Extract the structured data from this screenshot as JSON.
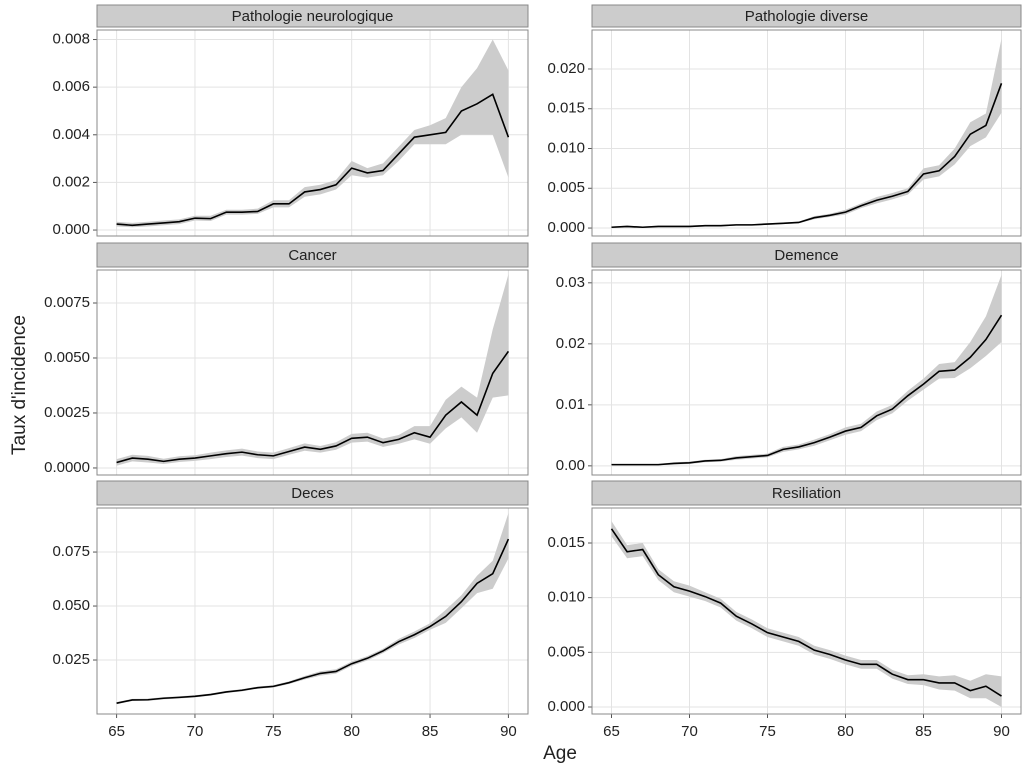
{
  "xlabel": "Age",
  "ylabel": "Taux d'incidence",
  "x": [
    65,
    66,
    67,
    68,
    69,
    70,
    71,
    72,
    73,
    74,
    75,
    76,
    77,
    78,
    79,
    80,
    81,
    82,
    83,
    84,
    85,
    86,
    87,
    88,
    89,
    90
  ],
  "xlim": [
    63.75,
    91.25
  ],
  "xticks": [
    65,
    70,
    75,
    80,
    85,
    90
  ],
  "chart_data": [
    {
      "type": "line",
      "title": "Pathologie neurologique",
      "color": "#000000",
      "band_color": "#cccccc",
      "grid": true,
      "ylim": [
        -0.00025,
        0.0084
      ],
      "yticks": [
        {
          "value": 0,
          "label": "0.000"
        },
        0.002,
        0.004,
        0.006,
        0.008
      ],
      "values": [
        0.00025,
        0.0002,
        0.00025,
        0.0003,
        0.00035,
        0.0005,
        0.00048,
        0.00075,
        0.00075,
        0.00078,
        0.0011,
        0.0011,
        0.0016,
        0.0017,
        0.0019,
        0.0026,
        0.0024,
        0.0025,
        0.0032,
        0.0039,
        0.004,
        0.0041,
        0.005,
        0.0053,
        0.0057,
        0.0039
      ],
      "lower": [
        0.00015,
        0.00012,
        0.00015,
        0.0002,
        0.00025,
        0.0004,
        0.00038,
        0.00065,
        0.00065,
        0.00068,
        0.00095,
        0.00095,
        0.0014,
        0.0015,
        0.0017,
        0.0023,
        0.0022,
        0.0023,
        0.0029,
        0.0036,
        0.0036,
        0.0036,
        0.004,
        0.004,
        0.004,
        0.0022
      ],
      "upper": [
        0.00035,
        0.0003,
        0.00035,
        0.0004,
        0.00045,
        0.0006,
        0.0006,
        0.00085,
        0.00085,
        0.0009,
        0.00125,
        0.00125,
        0.0018,
        0.0019,
        0.0021,
        0.0029,
        0.0026,
        0.0028,
        0.0035,
        0.0042,
        0.0044,
        0.0047,
        0.006,
        0.0068,
        0.008,
        0.0067
      ]
    },
    {
      "type": "line",
      "title": "Pathologie diverse",
      "color": "#000000",
      "band_color": "#cccccc",
      "grid": true,
      "ylim": [
        -0.001,
        0.0249
      ],
      "yticks": [
        {
          "value": 0,
          "label": "0.000"
        },
        0.005,
        {
          "value": 0.01,
          "label": "0.010"
        },
        0.015,
        {
          "value": 0.02,
          "label": "0.020"
        }
      ],
      "values": [
        0.0001,
        0.0002,
        0.0001,
        0.0002,
        0.0002,
        0.0002,
        0.0003,
        0.0003,
        0.0004,
        0.0004,
        0.0005,
        0.0006,
        0.0007,
        0.0013,
        0.0016,
        0.002,
        0.0028,
        0.0035,
        0.004,
        0.0046,
        0.0068,
        0.0072,
        0.009,
        0.0118,
        0.0129,
        0.0182
      ],
      "lower": [
        0.0,
        0.0001,
        0.0,
        0.0001,
        0.0001,
        0.0001,
        0.0002,
        0.0002,
        0.0003,
        0.0003,
        0.0004,
        0.0005,
        0.0006,
        0.0011,
        0.0014,
        0.0017,
        0.0025,
        0.0031,
        0.0036,
        0.0042,
        0.0061,
        0.0065,
        0.008,
        0.0103,
        0.0114,
        0.0145
      ],
      "upper": [
        0.0002,
        0.0003,
        0.0002,
        0.0003,
        0.0003,
        0.0003,
        0.0004,
        0.0004,
        0.0005,
        0.0005,
        0.0006,
        0.0007,
        0.0008,
        0.0015,
        0.0018,
        0.0023,
        0.0031,
        0.0039,
        0.0044,
        0.005,
        0.0075,
        0.0079,
        0.01,
        0.0133,
        0.0144,
        0.0238
      ]
    },
    {
      "type": "line",
      "title": "Cancer",
      "color": "#000000",
      "band_color": "#cccccc",
      "grid": true,
      "ylim": [
        -0.00032,
        0.009
      ],
      "yticks": [
        {
          "value": 0,
          "label": "0.0000"
        },
        0.0025,
        {
          "value": 0.005,
          "label": "0.0050"
        },
        0.0075
      ],
      "values": [
        0.00025,
        0.00045,
        0.0004,
        0.0003,
        0.0004,
        0.00045,
        0.00055,
        0.00065,
        0.00072,
        0.0006,
        0.00055,
        0.00075,
        0.00095,
        0.00085,
        0.001,
        0.00135,
        0.0014,
        0.00115,
        0.0013,
        0.0016,
        0.0014,
        0.0024,
        0.003,
        0.0024,
        0.0043,
        0.0053
      ],
      "lower": [
        0.0001,
        0.0003,
        0.00025,
        0.00018,
        0.00027,
        0.00032,
        0.0004,
        0.0005,
        0.00056,
        0.00045,
        0.0004,
        0.0006,
        0.00078,
        0.0007,
        0.00083,
        0.00115,
        0.0012,
        0.00096,
        0.0011,
        0.0013,
        0.0011,
        0.0018,
        0.0023,
        0.0016,
        0.0032,
        0.0033
      ],
      "upper": [
        0.0004,
        0.0006,
        0.00055,
        0.00042,
        0.00053,
        0.00058,
        0.0007,
        0.0008,
        0.00088,
        0.00075,
        0.0007,
        0.0009,
        0.00112,
        0.001,
        0.00117,
        0.00155,
        0.0016,
        0.00134,
        0.0015,
        0.0019,
        0.0019,
        0.0031,
        0.0037,
        0.0032,
        0.0063,
        0.0088
      ]
    },
    {
      "type": "line",
      "title": "Demence",
      "color": "#000000",
      "band_color": "#cccccc",
      "grid": true,
      "ylim": [
        -0.0015,
        0.0321
      ],
      "yticks": [
        {
          "value": 0,
          "label": "0.00"
        },
        0.01,
        0.02,
        0.03
      ],
      "values": [
        0.0002,
        0.0002,
        0.0002,
        0.0002,
        0.0004,
        0.0005,
        0.0008,
        0.0009,
        0.0013,
        0.0015,
        0.0017,
        0.0027,
        0.0031,
        0.0038,
        0.0047,
        0.0057,
        0.0063,
        0.0082,
        0.0093,
        0.0115,
        0.0134,
        0.0155,
        0.0157,
        0.0178,
        0.0207,
        0.0247
      ],
      "lower": [
        0.0001,
        0.0001,
        0.0001,
        0.0001,
        0.0002,
        0.0003,
        0.0006,
        0.0007,
        0.001,
        0.0012,
        0.0014,
        0.0023,
        0.0027,
        0.0033,
        0.0042,
        0.0051,
        0.0057,
        0.0075,
        0.0086,
        0.0107,
        0.0125,
        0.0143,
        0.0144,
        0.016,
        0.018,
        0.0203
      ],
      "upper": [
        0.0003,
        0.0003,
        0.0003,
        0.0003,
        0.0006,
        0.0007,
        0.001,
        0.0011,
        0.0016,
        0.0018,
        0.002,
        0.0031,
        0.0035,
        0.0043,
        0.0052,
        0.0063,
        0.0069,
        0.0089,
        0.01,
        0.0123,
        0.0143,
        0.0167,
        0.017,
        0.0203,
        0.0245,
        0.0313
      ]
    },
    {
      "type": "line",
      "title": "Deces",
      "color": "#000000",
      "band_color": "#cccccc",
      "grid": true,
      "ylim": [
        0,
        0.0954
      ],
      "yticks": [
        0.025,
        {
          "value": 0.05,
          "label": "0.050"
        },
        0.075
      ],
      "values": [
        0.005,
        0.0065,
        0.0066,
        0.0073,
        0.0077,
        0.0082,
        0.009,
        0.0102,
        0.011,
        0.0122,
        0.0128,
        0.0145,
        0.0168,
        0.0188,
        0.0197,
        0.0233,
        0.0258,
        0.0292,
        0.0335,
        0.0367,
        0.0405,
        0.0452,
        0.052,
        0.0605,
        0.065,
        0.081
      ],
      "lower": [
        0.0045,
        0.006,
        0.0061,
        0.0068,
        0.0072,
        0.0077,
        0.0085,
        0.0097,
        0.0105,
        0.0117,
        0.0122,
        0.0139,
        0.016,
        0.0178,
        0.0187,
        0.0223,
        0.0248,
        0.0282,
        0.0322,
        0.0352,
        0.039,
        0.0422,
        0.049,
        0.056,
        0.058,
        0.072
      ],
      "upper": [
        0.0055,
        0.007,
        0.0071,
        0.0078,
        0.0082,
        0.0087,
        0.0095,
        0.0107,
        0.0115,
        0.0127,
        0.0134,
        0.0151,
        0.0176,
        0.0198,
        0.0207,
        0.0243,
        0.0268,
        0.0302,
        0.0348,
        0.0382,
        0.042,
        0.0482,
        0.055,
        0.064,
        0.071,
        0.093
      ]
    },
    {
      "type": "line",
      "title": "Resiliation",
      "color": "#000000",
      "band_color": "#cccccc",
      "grid": true,
      "ylim": [
        -0.00064,
        0.0182
      ],
      "yticks": [
        {
          "value": 0,
          "label": "0.000"
        },
        0.005,
        {
          "value": 0.01,
          "label": "0.010"
        },
        0.015
      ],
      "values": [
        0.0163,
        0.0142,
        0.0144,
        0.0121,
        0.011,
        0.0106,
        0.0101,
        0.0095,
        0.0083,
        0.0076,
        0.0068,
        0.0064,
        0.006,
        0.0052,
        0.0048,
        0.0043,
        0.0039,
        0.0039,
        0.003,
        0.0025,
        0.0025,
        0.0022,
        0.0022,
        0.0015,
        0.0019,
        0.001
      ],
      "lower": [
        0.0156,
        0.0136,
        0.0138,
        0.0116,
        0.0105,
        0.0101,
        0.0097,
        0.0091,
        0.0079,
        0.0072,
        0.0064,
        0.006,
        0.0056,
        0.0048,
        0.0044,
        0.0039,
        0.0035,
        0.0035,
        0.0026,
        0.0021,
        0.002,
        0.0016,
        0.0015,
        0.0008,
        0.0008,
        0.0
      ],
      "upper": [
        0.017,
        0.0148,
        0.015,
        0.0126,
        0.0115,
        0.0111,
        0.0105,
        0.0099,
        0.0087,
        0.008,
        0.0072,
        0.0068,
        0.0064,
        0.0056,
        0.0052,
        0.0047,
        0.0043,
        0.0043,
        0.0034,
        0.0029,
        0.003,
        0.0028,
        0.0029,
        0.0024,
        0.003,
        0.0028
      ]
    }
  ]
}
